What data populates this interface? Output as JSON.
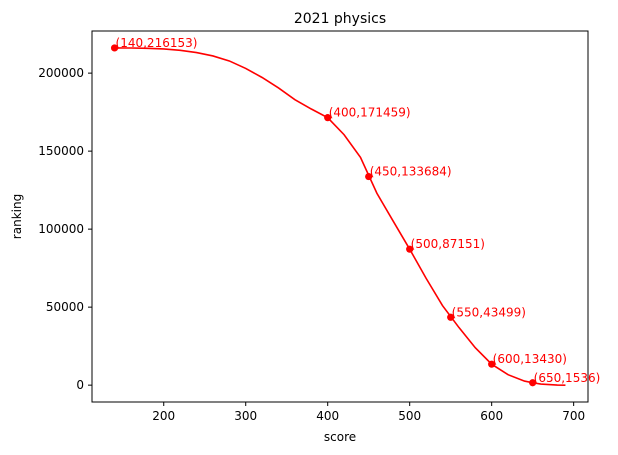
{
  "chart_data": {
    "type": "line",
    "title": "2021 physics",
    "xlabel": "score",
    "ylabel": "ranking",
    "xlim": [
      112.5,
      717.5
    ],
    "ylim": [
      -10800,
      227000
    ],
    "xticks": [
      200,
      300,
      400,
      500,
      600,
      700
    ],
    "yticks": [
      0,
      50000,
      100000,
      150000,
      200000
    ],
    "grid": false,
    "color": "#ff0000",
    "points": [
      {
        "x": 140,
        "y": 216153,
        "label": "(140,216153)"
      },
      {
        "x": 400,
        "y": 171459,
        "label": "(400,171459)"
      },
      {
        "x": 450,
        "y": 133684,
        "label": "(450,133684)"
      },
      {
        "x": 500,
        "y": 87151,
        "label": "(500,87151)"
      },
      {
        "x": 550,
        "y": 43499,
        "label": "(550,43499)"
      },
      {
        "x": 600,
        "y": 13430,
        "label": "(600,13430)"
      },
      {
        "x": 650,
        "y": 1536,
        "label": "(650,1536)"
      }
    ],
    "curve": {
      "x": [
        140,
        160,
        180,
        200,
        220,
        240,
        260,
        280,
        300,
        320,
        340,
        360,
        380,
        400,
        420,
        440,
        460,
        480,
        500,
        520,
        540,
        560,
        580,
        600,
        620,
        640,
        650,
        660,
        680,
        690
      ],
      "y": [
        216153,
        216100,
        215900,
        215500,
        214600,
        213200,
        211000,
        207800,
        203000,
        197200,
        190500,
        183000,
        177000,
        171459,
        160500,
        146000,
        123000,
        105000,
        87151,
        68500,
        51000,
        37000,
        24000,
        13430,
        6700,
        2600,
        1536,
        700,
        50,
        0
      ]
    }
  }
}
